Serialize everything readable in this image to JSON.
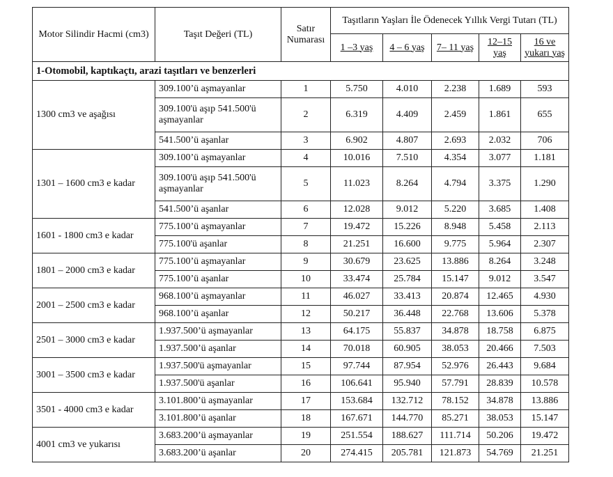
{
  "header": {
    "col_engine": "Motor Silindir Hacmi (cm3)",
    "col_value": "Taşıt Değeri (TL)",
    "col_row": "Satır Numarası",
    "col_tax": "Taşıtların Yaşları İle Ödenecek Yıllık Vergi Tutarı (TL)",
    "ages": [
      "1 –3 yaş",
      "4 – 6 yaş",
      "7– 11 yaş",
      "12–15 yaş",
      "16 ve yukarı yaş"
    ]
  },
  "section": "1-Otomobil, kaptıkaçtı, arazi taşıtları ve benzerleri",
  "groups": [
    {
      "engine": "1300 cm3 ve aşağısı",
      "rows": [
        {
          "value": "309.100’ü aşmayanlar",
          "no": "1",
          "taxes": [
            "5.750",
            "4.010",
            "2.238",
            "1.689",
            "593"
          ]
        },
        {
          "value": "309.100'ü aşıp 541.500'ü aşmayanlar",
          "no": "2",
          "taxes": [
            "6.319",
            "4.409",
            "2.459",
            "1.861",
            "655"
          ]
        },
        {
          "value": "541.500’ü aşanlar",
          "no": "3",
          "taxes": [
            "6.902",
            "4.807",
            "2.693",
            "2.032",
            "706"
          ]
        }
      ]
    },
    {
      "engine": "1301 – 1600 cm3 e kadar",
      "rows": [
        {
          "value": "309.100’ü aşmayanlar",
          "no": "4",
          "taxes": [
            "10.016",
            "7.510",
            "4.354",
            "3.077",
            "1.181"
          ]
        },
        {
          "value": "309.100'ü aşıp 541.500'ü aşmayanlar",
          "no": "5",
          "taxes": [
            "11.023",
            "8.264",
            "4.794",
            "3.375",
            "1.290"
          ]
        },
        {
          "value": "541.500’ü aşanlar",
          "no": "6",
          "taxes": [
            "12.028",
            "9.012",
            "5.220",
            "3.685",
            "1.408"
          ]
        }
      ]
    },
    {
      "engine": "1601 - 1800 cm3 e kadar",
      "rows": [
        {
          "value": "775.100’ü aşmayanlar",
          "no": "7",
          "taxes": [
            "19.472",
            "15.226",
            "8.948",
            "5.458",
            "2.113"
          ]
        },
        {
          "value": "775.100'ü aşanlar",
          "no": "8",
          "taxes": [
            "21.251",
            "16.600",
            "9.775",
            "5.964",
            "2.307"
          ]
        }
      ]
    },
    {
      "engine": "1801 – 2000 cm3 e kadar",
      "rows": [
        {
          "value": "775.100’ü aşmayanlar",
          "no": "9",
          "taxes": [
            "30.679",
            "23.625",
            "13.886",
            "8.264",
            "3.248"
          ]
        },
        {
          "value": "775.100’ü aşanlar",
          "no": "10",
          "taxes": [
            "33.474",
            "25.784",
            "15.147",
            "9.012",
            "3.547"
          ]
        }
      ]
    },
    {
      "engine": "2001 – 2500 cm3 e kadar",
      "rows": [
        {
          "value": "968.100’ü aşmayanlar",
          "no": "11",
          "taxes": [
            "46.027",
            "33.413",
            "20.874",
            "12.465",
            "4.930"
          ]
        },
        {
          "value": "968.100’ü aşanlar",
          "no": "12",
          "taxes": [
            "50.217",
            "36.448",
            "22.768",
            "13.606",
            "5.378"
          ]
        }
      ]
    },
    {
      "engine": "2501 – 3000 cm3 e kadar",
      "rows": [
        {
          "value": "1.937.500’ü aşmayanlar",
          "no": "13",
          "taxes": [
            "64.175",
            "55.837",
            "34.878",
            "18.758",
            "6.875"
          ]
        },
        {
          "value": "1.937.500’ü aşanlar",
          "no": "14",
          "taxes": [
            "70.018",
            "60.905",
            "38.053",
            "20.466",
            "7.503"
          ]
        }
      ]
    },
    {
      "engine": "3001 – 3500 cm3 e kadar",
      "rows": [
        {
          "value": "1.937.500'ü aşmayanlar",
          "no": "15",
          "taxes": [
            "97.744",
            "87.954",
            "52.976",
            "26.443",
            "9.684"
          ]
        },
        {
          "value": "1.937.500'ü aşanlar",
          "no": "16",
          "taxes": [
            "106.641",
            "95.940",
            "57.791",
            "28.839",
            "10.578"
          ]
        }
      ]
    },
    {
      "engine": "3501 - 4000 cm3  e kadar",
      "rows": [
        {
          "value": "3.101.800’ü aşmayanlar",
          "no": "17",
          "taxes": [
            "153.684",
            "132.712",
            "78.152",
            "34.878",
            "13.886"
          ]
        },
        {
          "value": "3.101.800’ü aşanlar",
          "no": "18",
          "taxes": [
            "167.671",
            "144.770",
            "85.271",
            "38.053",
            "15.147"
          ]
        }
      ]
    },
    {
      "engine": "4001 cm3 ve yukarısı",
      "rows": [
        {
          "value": "3.683.200’ü aşmayanlar",
          "no": "19",
          "taxes": [
            "251.554",
            "188.627",
            "111.714",
            "50.206",
            "19.472"
          ]
        },
        {
          "value": "3.683.200’ü aşanlar",
          "no": "20",
          "taxes": [
            "274.415",
            "205.781",
            "121.873",
            "54.769",
            "21.251"
          ]
        }
      ]
    }
  ]
}
